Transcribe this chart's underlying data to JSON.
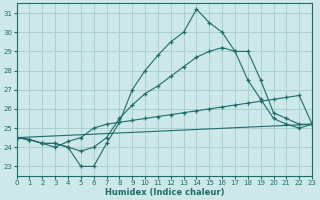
{
  "xlabel": "Humidex (Indice chaleur)",
  "background_color": "#cde8e8",
  "grid_color": "#aad0d0",
  "line_color": "#1e6b6b",
  "xlim": [
    0,
    23
  ],
  "ylim": [
    22.5,
    31.5
  ],
  "yticks": [
    23,
    24,
    25,
    26,
    27,
    28,
    29,
    30,
    31
  ],
  "xticks": [
    0,
    1,
    2,
    3,
    4,
    5,
    6,
    7,
    8,
    9,
    10,
    11,
    12,
    13,
    14,
    15,
    16,
    17,
    18,
    19,
    20,
    21,
    22,
    23
  ],
  "line1_x": [
    0,
    1,
    2,
    3,
    4,
    5,
    6,
    7,
    8,
    9,
    10,
    11,
    12,
    13,
    14,
    15,
    16,
    17,
    18,
    19,
    20,
    21,
    22,
    23
  ],
  "line1_y": [
    24.5,
    24.4,
    24.2,
    24.2,
    24.0,
    23.0,
    23.0,
    24.2,
    25.3,
    27.0,
    28.0,
    28.8,
    29.5,
    30.0,
    31.2,
    30.5,
    30.0,
    29.0,
    29.0,
    27.5,
    25.8,
    25.5,
    25.2,
    25.2
  ],
  "line2_x": [
    0,
    1,
    2,
    3,
    4,
    5,
    6,
    7,
    8,
    9,
    10,
    11,
    12,
    13,
    14,
    15,
    16,
    17,
    18,
    19,
    20,
    21,
    22,
    23
  ],
  "line2_y": [
    24.5,
    24.4,
    24.2,
    24.2,
    24.0,
    23.8,
    24.0,
    24.5,
    25.5,
    26.2,
    26.8,
    27.2,
    27.7,
    28.2,
    28.7,
    29.0,
    29.2,
    29.0,
    27.5,
    26.5,
    25.5,
    25.2,
    25.0,
    25.2
  ],
  "line3_x": [
    0,
    23
  ],
  "line3_y": [
    24.5,
    25.2
  ],
  "line4_x": [
    0,
    1,
    2,
    3,
    4,
    5,
    6,
    7,
    8,
    9,
    10,
    11,
    12,
    13,
    14,
    15,
    16,
    17,
    18,
    19,
    20,
    21,
    22,
    23
  ],
  "line4_y": [
    24.5,
    24.4,
    24.2,
    24.0,
    24.3,
    24.5,
    25.0,
    25.2,
    25.3,
    25.4,
    25.5,
    25.6,
    25.7,
    25.8,
    25.9,
    26.0,
    26.1,
    26.2,
    26.3,
    26.4,
    26.5,
    26.6,
    26.7,
    25.2
  ]
}
